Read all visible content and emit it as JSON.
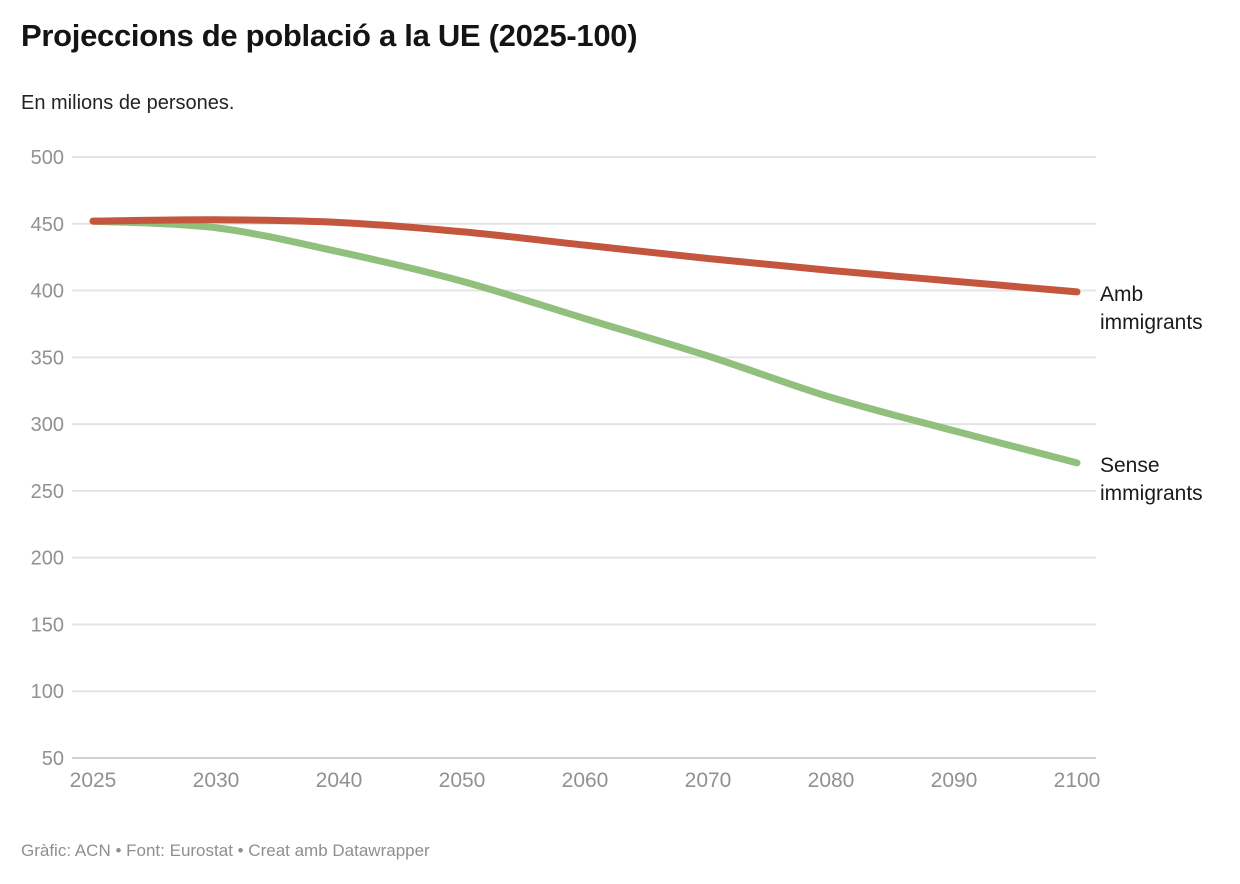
{
  "chart_data": {
    "type": "line",
    "title": "Projeccions de població a la UE (2025-100)",
    "subtitle": "En milions de persones.",
    "source_line": "Gràfic: ACN • Font: Eurostat • Creat amb Datawrapper",
    "x_ticks": [
      "2025",
      "2030",
      "2040",
      "2050",
      "2060",
      "2070",
      "2080",
      "2090",
      "2100"
    ],
    "x_spacing": "equal-interval",
    "y_ticks": [
      50,
      100,
      150,
      200,
      250,
      300,
      350,
      400,
      450,
      500
    ],
    "ylim": [
      50,
      500
    ],
    "grid": true,
    "legend_position": "labels-at-line-end-right",
    "series": [
      {
        "name": "Amb immigrants",
        "color": "#c4563e",
        "values": [
          452,
          453,
          451,
          444,
          434,
          424,
          415,
          407,
          399
        ]
      },
      {
        "name": "Sense immigrants",
        "color": "#90c07c",
        "values": [
          452,
          447,
          429,
          407,
          379,
          351,
          320,
          295,
          271
        ]
      }
    ]
  },
  "colors": {
    "amb_line": "#c4563e",
    "sense_line": "#90c07c",
    "gridline": "#e4e4e4",
    "baseline": "#cfcfcf",
    "axis_text": "#919191",
    "title_text": "#141414",
    "footer_text": "#8f8f8f"
  }
}
